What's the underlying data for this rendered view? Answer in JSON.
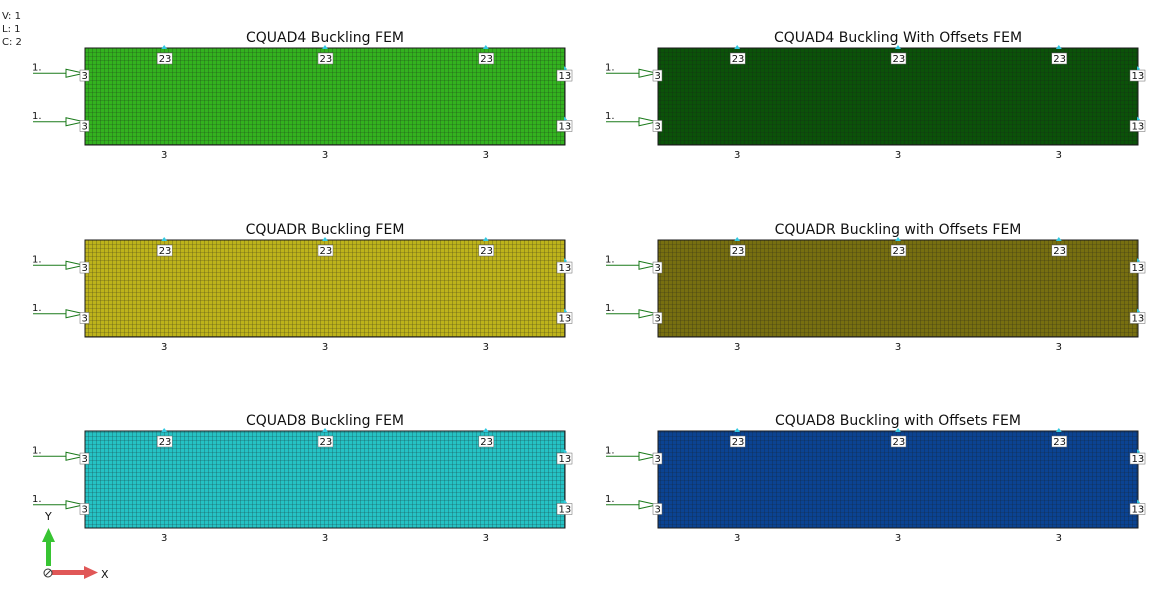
{
  "info": {
    "view": "V: 1",
    "load": "L: 1",
    "case": "C: 2"
  },
  "constraint_top": "23",
  "constraint_left": "3",
  "constraint_right": "13",
  "constraint_bottom": "3",
  "force_label": "1.",
  "axes": {
    "y_label": "Y",
    "x_label": "X"
  },
  "mesh_line_color": "#1a1a1a",
  "panels": [
    {
      "title": "CQUAD4 Buckling FEM",
      "fill": "#33b21f"
    },
    {
      "title": "CQUAD4 Buckling With Offsets FEM",
      "fill": "#0b5209"
    },
    {
      "title": "CQUADR Buckling FEM",
      "fill": "#bdb31b"
    },
    {
      "title": "CQUADR Buckling with Offsets FEM",
      "fill": "#776f10"
    },
    {
      "title": "CQUAD8 Buckling FEM",
      "fill": "#25c2c4"
    },
    {
      "title": "CQUAD8 Buckling with Offsets FEM",
      "fill": "#0b4392"
    }
  ]
}
